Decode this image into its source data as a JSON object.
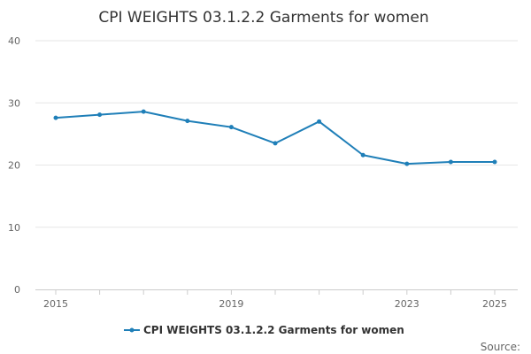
{
  "chart_data": {
    "type": "line",
    "title": "CPI WEIGHTS 03.1.2.2 Garments for women",
    "xlabel": "",
    "ylabel": "",
    "x": [
      2015,
      2016,
      2017,
      2018,
      2019,
      2020,
      2021,
      2022,
      2023,
      2024,
      2025
    ],
    "x_tick_labels": [
      "2015",
      "2019",
      "2023",
      "2025"
    ],
    "y_tick_labels": [
      "0",
      "10",
      "20",
      "30",
      "40"
    ],
    "ylim": [
      0,
      40
    ],
    "grid": true,
    "legend_position": "bottom",
    "series": [
      {
        "name": "CPI WEIGHTS 03.1.2.2 Garments for women",
        "color": "#1f7fb8",
        "values": [
          27.6,
          28.1,
          28.6,
          27.1,
          26.1,
          23.5,
          27.0,
          21.6,
          20.2,
          20.5,
          20.5
        ]
      }
    ],
    "source_label": "Source:"
  }
}
